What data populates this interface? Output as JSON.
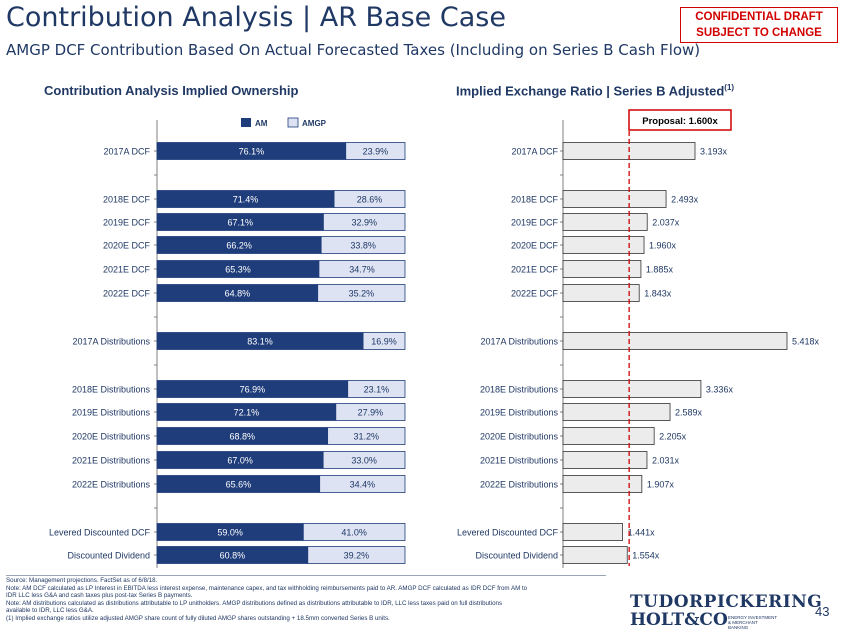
{
  "header": {
    "title": "Contribution Analysis | AR Base Case",
    "subtitle": "AMGP DCF Contribution Based On Actual Forecasted Taxes (Including on Series B Cash Flow)",
    "confidential_line1": "CONFIDENTIAL DRAFT",
    "confidential_line2": "SUBJECT TO CHANGE"
  },
  "sections": {
    "left_title": "Contribution Analysis Implied Ownership",
    "right_title": "Implied Exchange Ratio | Series B Adjusted",
    "right_title_sup": "(1)"
  },
  "chart_data": [
    {
      "type": "bar",
      "orientation": "horizontal",
      "stacked": true,
      "title": "Contribution Analysis Implied Ownership",
      "categories": [
        "2017A DCF",
        "2018E DCF",
        "2019E DCF",
        "2020E DCF",
        "2021E DCF",
        "2022E DCF",
        "2017A Distributions",
        "2018E Distributions",
        "2019E Distributions",
        "2020E Distributions",
        "2021E Distributions",
        "2022E Distributions",
        "Levered Discounted DCF",
        "Discounted Dividend"
      ],
      "series": [
        {
          "name": "AM",
          "values": [
            76.1,
            71.4,
            67.1,
            66.2,
            65.3,
            64.8,
            83.1,
            76.9,
            72.1,
            68.8,
            67.0,
            65.6,
            59.0,
            60.8
          ],
          "color": "#1f3d7a"
        },
        {
          "name": "AMGP",
          "values": [
            23.9,
            28.6,
            32.9,
            33.8,
            34.7,
            35.2,
            16.9,
            23.1,
            27.9,
            31.2,
            33.0,
            34.4,
            41.0,
            39.2
          ],
          "color": "#dde3f3"
        }
      ],
      "value_suffix": "%",
      "legend_position": "top",
      "xlim": [
        0,
        100
      ]
    },
    {
      "type": "bar",
      "orientation": "horizontal",
      "title": "Implied Exchange Ratio | Series B Adjusted",
      "categories": [
        "2017A DCF",
        "2018E DCF",
        "2019E DCF",
        "2020E DCF",
        "2021E DCF",
        "2022E DCF",
        "2017A Distributions",
        "2018E Distributions",
        "2019E Distributions",
        "2020E Distributions",
        "2021E Distributions",
        "2022E Distributions",
        "Levered Discounted DCF",
        "Discounted Dividend"
      ],
      "values": [
        3.193,
        2.493,
        2.037,
        1.96,
        1.885,
        1.843,
        5.418,
        3.336,
        2.589,
        2.205,
        2.031,
        1.907,
        1.441,
        1.554
      ],
      "value_suffix": "x",
      "color": "#ececec",
      "reference_line": {
        "value": 1.6,
        "label": "Proposal: 1.600x",
        "color": "#d20000"
      }
    }
  ],
  "footer": {
    "source": "Source: Management projections. FactSet as of 6/8/18.",
    "note1a": "Note: AM DCF calculated as LP Interest in EBITDA less interest expense, maintenance capex, and tax withholding reimbursements paid to AR. AMGP DCF calculated as IDR DCF from AM to",
    "note1b": "IDR LLC less G&A and cash taxes plus post-tax Series B payments.",
    "note2a": "Note: AM distributions calculated as distributions attributable to LP unitholders. AMGP distributions defined as distributions attributable to IDR, LLC less taxes paid on full distributions",
    "note2b": "available to IDR, LLC less G&A.",
    "note3": "(1)     Implied exchange ratios utilize adjusted AMGP share count of fully diluted AMGP shares outstanding + 18.5mm converted Series B units."
  },
  "branding": {
    "logo_line1": "TUDORPICKERING",
    "logo_line2": "HOLT&CO",
    "logo_tagline": "ENERGY INVESTMENT & MERCHANT BANKING",
    "page_number": "43"
  }
}
